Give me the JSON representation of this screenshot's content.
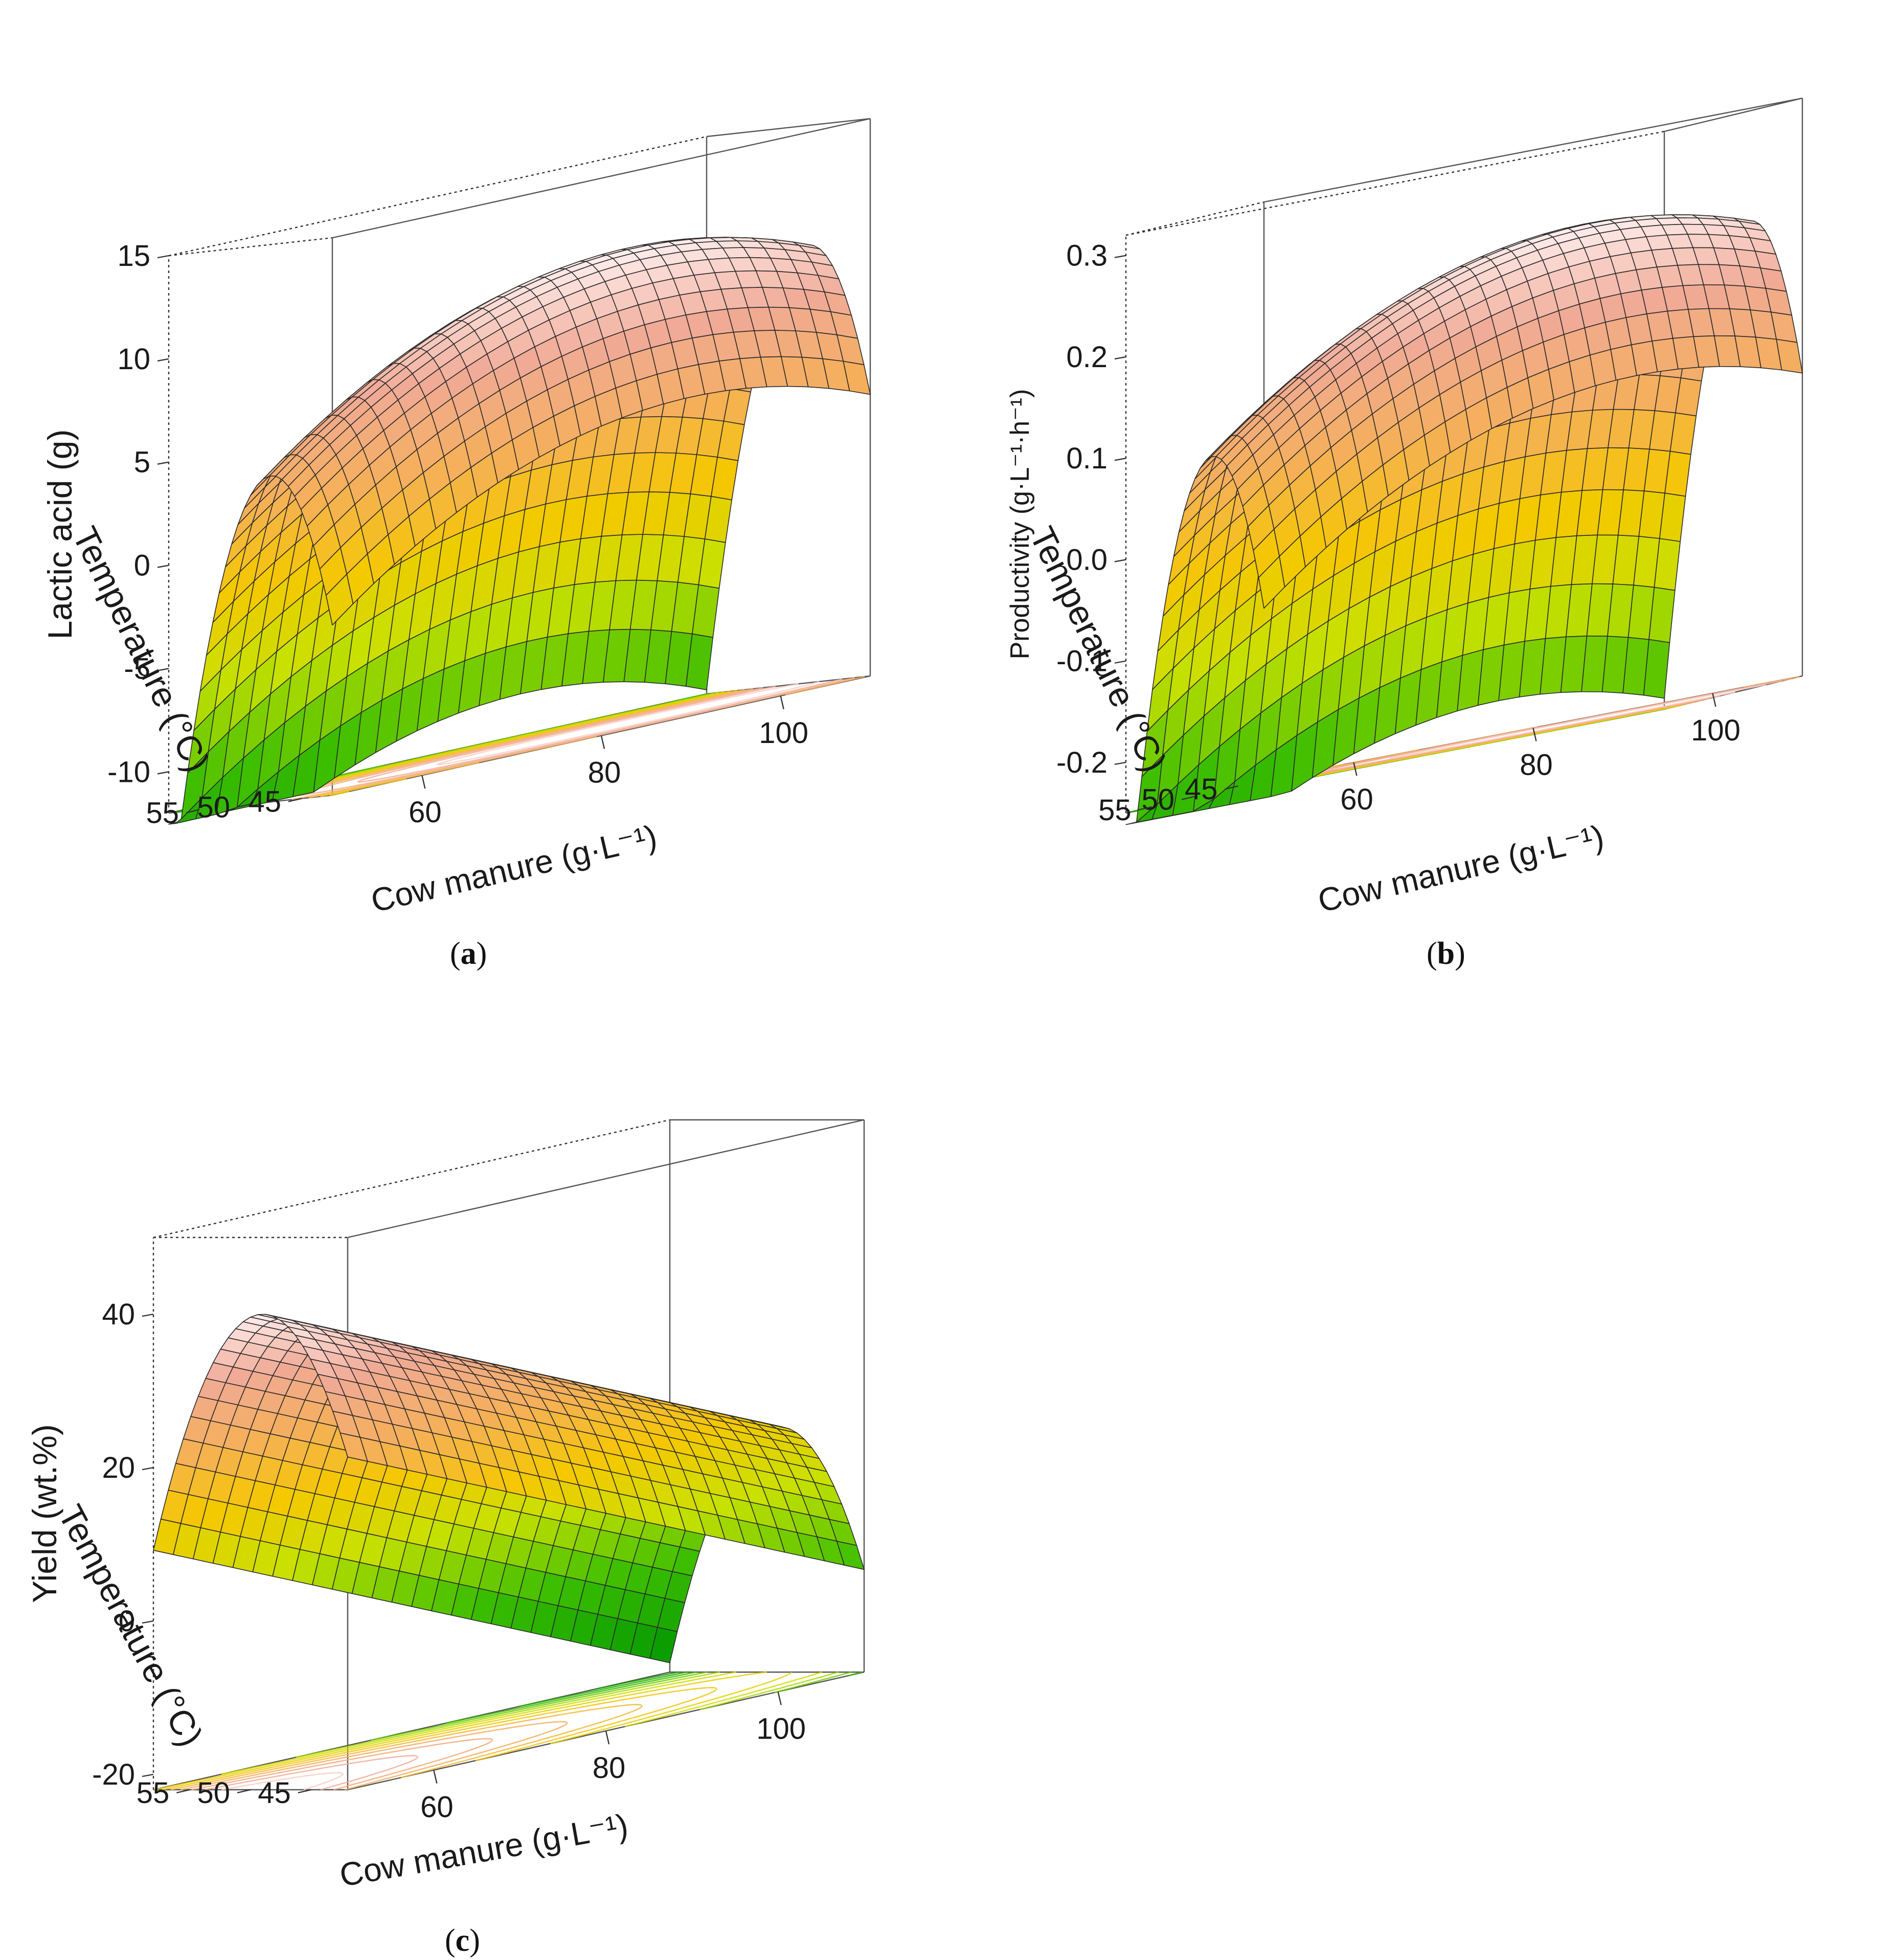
{
  "chart_data": [
    {
      "type": "surface3d",
      "panel": "a",
      "caption": "a",
      "zlabel": "Lactic acid (g)",
      "xlabel": "Cow manure (g·L⁻¹)",
      "ylabel": "Temperature (°C)",
      "zticks": [
        "-10",
        "-5",
        "0",
        "5",
        "10",
        "15"
      ],
      "zlim": [
        -12,
        15
      ],
      "xticks": [
        "60",
        "80",
        "100"
      ],
      "xlim": [
        50,
        110
      ],
      "yticks": [
        "45",
        "50",
        "55"
      ],
      "ylim": [
        42,
        58
      ],
      "surface": {
        "optimum_x": 90,
        "optimum_y": 48,
        "zmax": 11,
        "curv_x": 0.0045,
        "curv_y": 0.21,
        "cross": 0.0,
        "zmin_corner": -8
      }
    },
    {
      "type": "surface3d",
      "panel": "b",
      "caption": "b",
      "zlabel": "Productivity (g·L⁻¹·h⁻¹)",
      "xlabel": "Cow manure (g·L⁻¹)",
      "ylabel": "Temperature (°C)",
      "zticks": [
        "-0.2",
        "-0.1",
        "0.0",
        "0.1",
        "0.2",
        "0.3"
      ],
      "zlim": [
        -0.25,
        0.32
      ],
      "xticks": [
        "60",
        "80",
        "100"
      ],
      "xlim": [
        50,
        110
      ],
      "yticks": [
        "45",
        "50",
        "55"
      ],
      "ylim": [
        42,
        58
      ],
      "surface": {
        "optimum_x": 92,
        "optimum_y": 48,
        "zmax": 0.24,
        "curv_x": 9e-05,
        "curv_y": 0.0045,
        "cross": 0.0,
        "zmin_corner": -0.17
      }
    },
    {
      "type": "surface3d",
      "panel": "c",
      "caption": "c",
      "zlabel": "Yield (wt.%)",
      "xlabel": "Cow manure (g·L⁻¹)",
      "ylabel": "Temperature (°C)",
      "zticks": [
        "-20",
        "0",
        "20",
        "40"
      ],
      "zlim": [
        -22,
        50
      ],
      "xticks": [
        "60",
        "80",
        "100"
      ],
      "xlim": [
        50,
        110
      ],
      "yticks": [
        "45",
        "50",
        "55"
      ],
      "ylim": [
        42,
        58
      ],
      "surface": {
        "optimum_x": 50,
        "optimum_y": 49,
        "zmax": 40,
        "curv_x": 0.0,
        "curv_y": 0.38,
        "slope_x": -0.5,
        "cross": 0.0,
        "zmin_corner": -10
      }
    }
  ]
}
